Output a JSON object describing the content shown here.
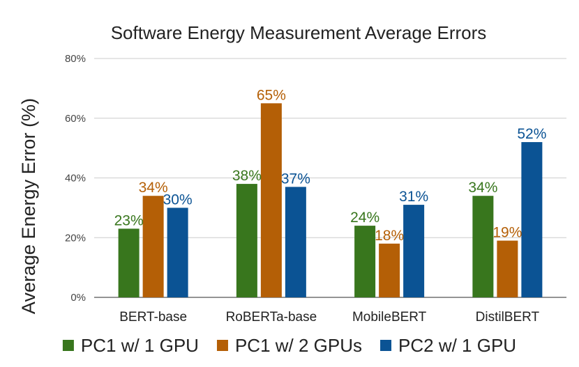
{
  "chart_data": {
    "type": "bar",
    "title": "Software Energy Measurement Average Errors",
    "xlabel": "",
    "ylabel": "Average Energy Error (%)",
    "ylim": [
      0,
      80
    ],
    "yticks": [
      "0%",
      "20%",
      "40%",
      "60%",
      "80%"
    ],
    "ytick_values": [
      0,
      20,
      40,
      60,
      80
    ],
    "categories": [
      "BERT-base",
      "RoBERTa-base",
      "MobileBERT",
      "DistilBERT"
    ],
    "series": [
      {
        "name": "PC1 w/ 1 GPU",
        "color": "#38761d",
        "values": [
          23,
          38,
          24,
          34
        ],
        "labels": [
          "23%",
          "38%",
          "24%",
          "34%"
        ]
      },
      {
        "name": "PC1 w/ 2 GPUs",
        "color": "#b45f06",
        "values": [
          34,
          65,
          18,
          19
        ],
        "labels": [
          "34%",
          "65%",
          "18%",
          "19%"
        ]
      },
      {
        "name": "PC2 w/ 1 GPU",
        "color": "#0b5394",
        "values": [
          30,
          37,
          31,
          52
        ],
        "labels": [
          "30%",
          "37%",
          "31%",
          "52%"
        ]
      }
    ],
    "legend_position": "bottom",
    "grid": true
  }
}
